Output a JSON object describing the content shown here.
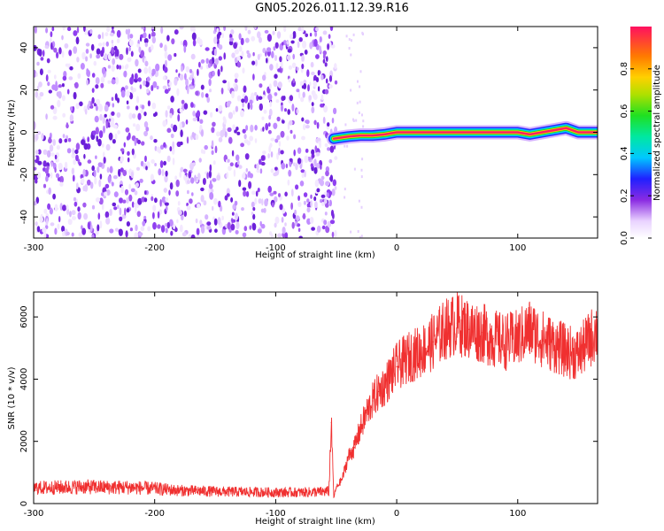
{
  "title": "GN05.2026.011.12.39.R16",
  "chart_data": [
    {
      "type": "heatmap",
      "xlabel": "Height of straight line (km)",
      "ylabel": "Frequency (Hz)",
      "xlim": [
        -300,
        166
      ],
      "ylim": [
        -50,
        50
      ],
      "xticks": [
        "-300",
        "-200",
        "-100",
        "0",
        "100"
      ],
      "yticks": [
        "-40",
        "-20",
        "0",
        "20",
        "40"
      ],
      "colorbar": {
        "label": "Normalized spectral amplitude",
        "range": [
          0,
          1
        ],
        "ticks": [
          "0.0",
          "0.2",
          "0.4",
          "0.6",
          "0.8"
        ]
      },
      "noise_region_x": [
        -300,
        -50
      ],
      "signal_track": {
        "x": [
          -52,
          -40,
          -30,
          -20,
          -10,
          0,
          20,
          40,
          60,
          80,
          100,
          110,
          120,
          130,
          140,
          150,
          166
        ],
        "frequency": [
          -3,
          -2,
          -1.5,
          -1.5,
          -1,
          0,
          0,
          0,
          0,
          0,
          0,
          -1,
          0,
          1,
          2,
          0,
          0
        ]
      }
    },
    {
      "type": "line",
      "xlabel": "Height of straight line (km)",
      "ylabel": "SNR (10 * v/v)",
      "xlim": [
        -300,
        166
      ],
      "ylim": [
        0,
        6800
      ],
      "xticks": [
        "-300",
        "-200",
        "-100",
        "0",
        "100"
      ],
      "yticks": [
        "0",
        "2000",
        "4000",
        "6000"
      ],
      "series": [
        {
          "color": "#f03030",
          "x": [
            -300,
            -280,
            -260,
            -240,
            -220,
            -200,
            -180,
            -160,
            -140,
            -120,
            -100,
            -80,
            -60,
            -56,
            -54,
            -52,
            -50,
            -45,
            -40,
            -35,
            -30,
            -25,
            -20,
            -15,
            -10,
            -5,
            0,
            10,
            20,
            30,
            40,
            50,
            60,
            70,
            80,
            90,
            100,
            110,
            120,
            130,
            140,
            150,
            160,
            166
          ],
          "values": [
            500,
            520,
            540,
            520,
            520,
            480,
            420,
            400,
            380,
            370,
            360,
            360,
            380,
            400,
            2600,
            200,
            500,
            800,
            1500,
            1800,
            2400,
            2900,
            3300,
            3600,
            3800,
            4100,
            4400,
            4700,
            4900,
            5200,
            5600,
            5800,
            5600,
            5500,
            5300,
            5200,
            5300,
            5600,
            5300,
            5100,
            4900,
            4800,
            5300,
            5600
          ]
        }
      ]
    }
  ]
}
